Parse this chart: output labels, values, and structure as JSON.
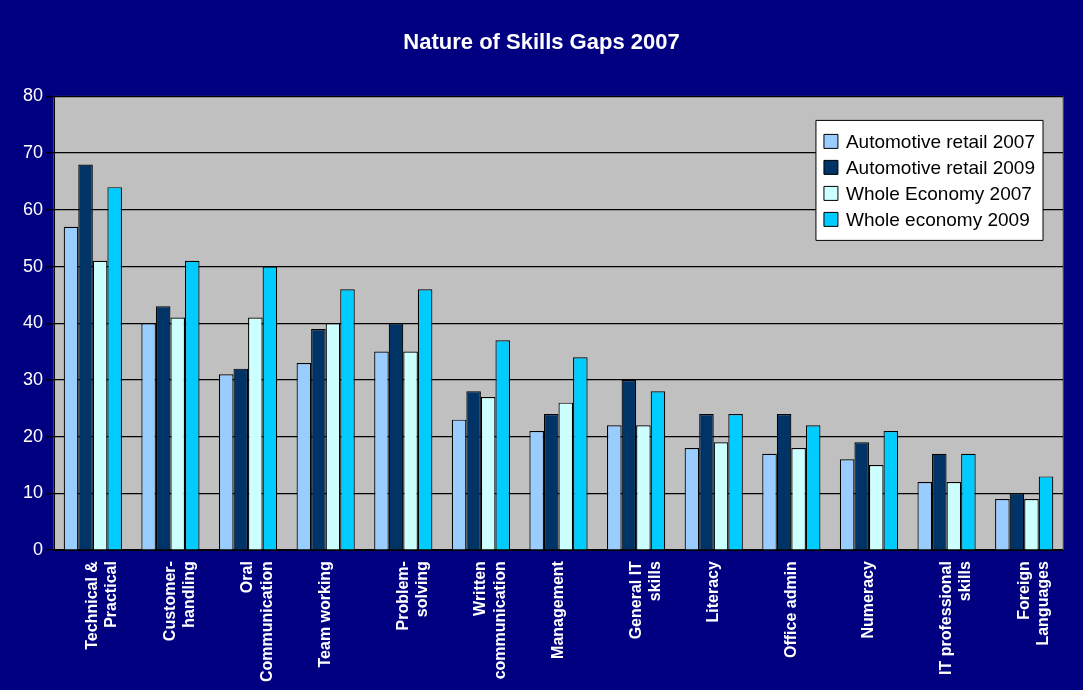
{
  "chart_data": {
    "type": "bar",
    "title": "Nature of Skills Gaps 2007",
    "categories": [
      "Technical & Practical",
      "Customer-handling",
      "Oral Communication",
      "Team working",
      "Problem-solving",
      "Written communication",
      "Management",
      "General IT skills",
      "Literacy",
      "Office admin",
      "Numeracy",
      "IT professional skills",
      "Foreign Languages"
    ],
    "series": [
      {
        "name": "Automotive retail 2007",
        "color": "#99ccff",
        "values": [
          57,
          40,
          31,
          33,
          35,
          23,
          21,
          22,
          18,
          17,
          16,
          12,
          9
        ]
      },
      {
        "name": "Automotive retail 2009",
        "color": "#003366",
        "values": [
          68,
          43,
          32,
          39,
          40,
          28,
          24,
          30,
          24,
          24,
          19,
          17,
          10
        ]
      },
      {
        "name": "Whole Economy 2007",
        "color": "#ccffff",
        "values": [
          51,
          41,
          41,
          40,
          35,
          27,
          26,
          22,
          19,
          18,
          15,
          12,
          9
        ]
      },
      {
        "name": "Whole economy 2009",
        "color": "#00ccff",
        "values": [
          64,
          51,
          50,
          46,
          46,
          37,
          34,
          28,
          24,
          22,
          21,
          17,
          13
        ]
      }
    ],
    "ylim": [
      0,
      80
    ],
    "yticks": [
      0,
      10,
      20,
      30,
      40,
      50,
      60,
      70,
      80
    ],
    "grid": "y",
    "legend": "top right"
  }
}
